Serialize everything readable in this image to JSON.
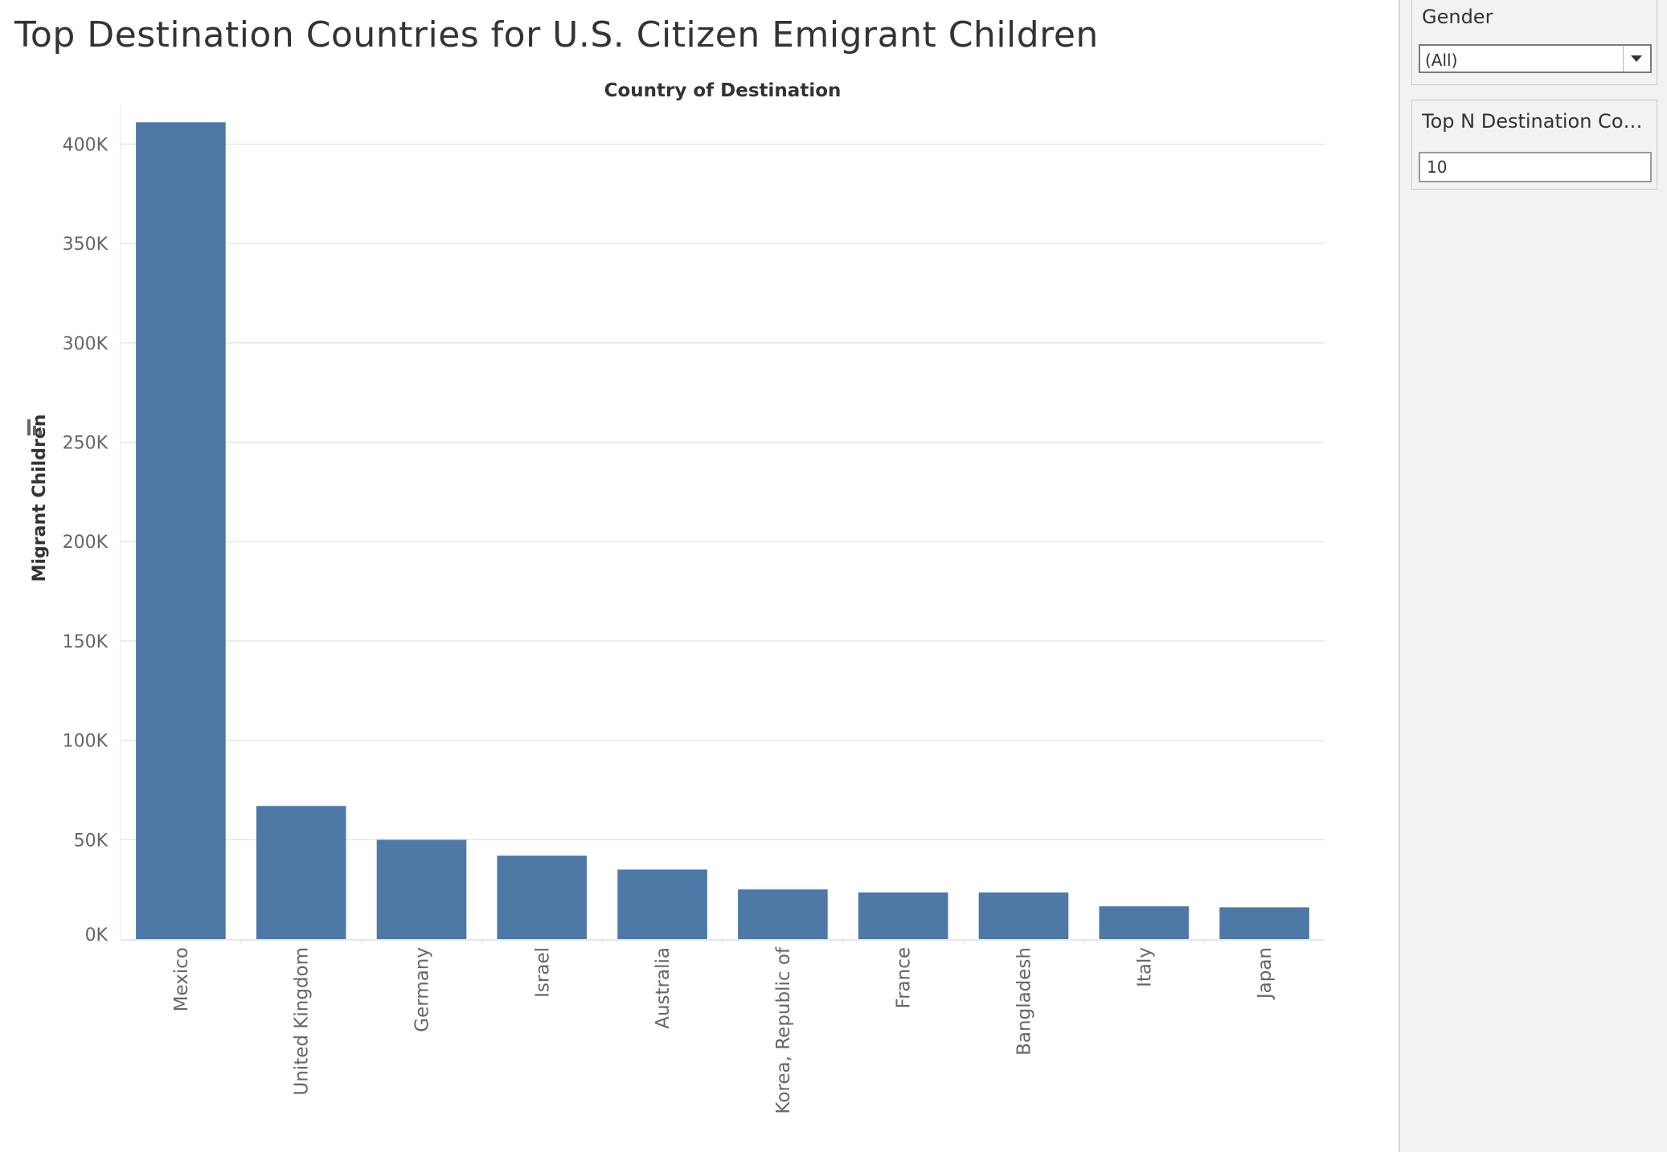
{
  "page": {
    "title": "Top Destination Countries for U.S. Citizen Emigrant Children"
  },
  "filters": {
    "gender": {
      "label": "Gender",
      "selected": "(All)",
      "icon": "dropdown-arrow-icon"
    },
    "top_n": {
      "label": "Top N Destination Coun...",
      "value": "10"
    }
  },
  "colors": {
    "bar": "#4e79a7",
    "gridline": "#e6e6e6",
    "tick_text": "#666666",
    "axis_title": "#333333"
  },
  "chart_data": {
    "type": "bar",
    "title": "",
    "xlabel": "Country of Destination",
    "ylabel": "Migrant Children",
    "ylabel_icon": "sort-icon",
    "categories": [
      "Mexico",
      "United Kingdom",
      "Germany",
      "Israel",
      "Australia",
      "Korea, Republic of",
      "France",
      "Bangladesh",
      "Italy",
      "Japan"
    ],
    "values": [
      411000,
      67000,
      50000,
      42000,
      35000,
      25000,
      23500,
      23500,
      16500,
      16000
    ],
    "ylim": [
      0,
      420000
    ],
    "yticks": [
      0,
      50000,
      100000,
      150000,
      200000,
      250000,
      300000,
      350000,
      400000
    ],
    "ytick_labels": [
      "0K",
      "50K",
      "100K",
      "150K",
      "200K",
      "250K",
      "300K",
      "350K",
      "400K"
    ],
    "grid": true,
    "legend": "none"
  }
}
